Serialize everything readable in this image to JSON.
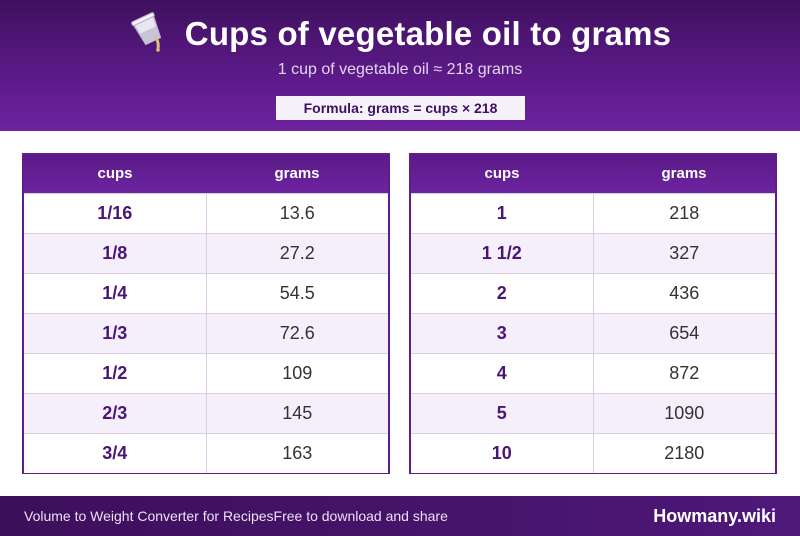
{
  "header": {
    "title": "Cups of vegetable oil to grams",
    "icon": "measuring-cup-pouring-icon",
    "subtitle": "1 cup of vegetable oil ≈ 218 grams",
    "formula": "Formula: grams = cups × 218"
  },
  "colors": {
    "header_purple": "#5a1a86",
    "accent_text": "#4a1575",
    "alt_row": "#f4effa"
  },
  "tables": {
    "left": {
      "col_cups": "cups",
      "col_grams": "grams",
      "rows": [
        {
          "cups": "1/16",
          "grams": "13.6"
        },
        {
          "cups": "1/8",
          "grams": "27.2"
        },
        {
          "cups": "1/4",
          "grams": "54.5"
        },
        {
          "cups": "1/3",
          "grams": "72.6"
        },
        {
          "cups": "1/2",
          "grams": "109"
        },
        {
          "cups": "2/3",
          "grams": "145"
        },
        {
          "cups": "3/4",
          "grams": "163"
        }
      ]
    },
    "right": {
      "col_cups": "cups",
      "col_grams": "grams",
      "rows": [
        {
          "cups": "1",
          "grams": "218"
        },
        {
          "cups": "1 1/2",
          "grams": "327"
        },
        {
          "cups": "2",
          "grams": "436"
        },
        {
          "cups": "3",
          "grams": "654"
        },
        {
          "cups": "4",
          "grams": "872"
        },
        {
          "cups": "5",
          "grams": "1090"
        },
        {
          "cups": "10",
          "grams": "2180"
        }
      ]
    }
  },
  "footer": {
    "left_text": "Volume to Weight Converter for Recipes",
    "mid_text": "Free to download and share",
    "brand": "Howmany.wiki"
  }
}
